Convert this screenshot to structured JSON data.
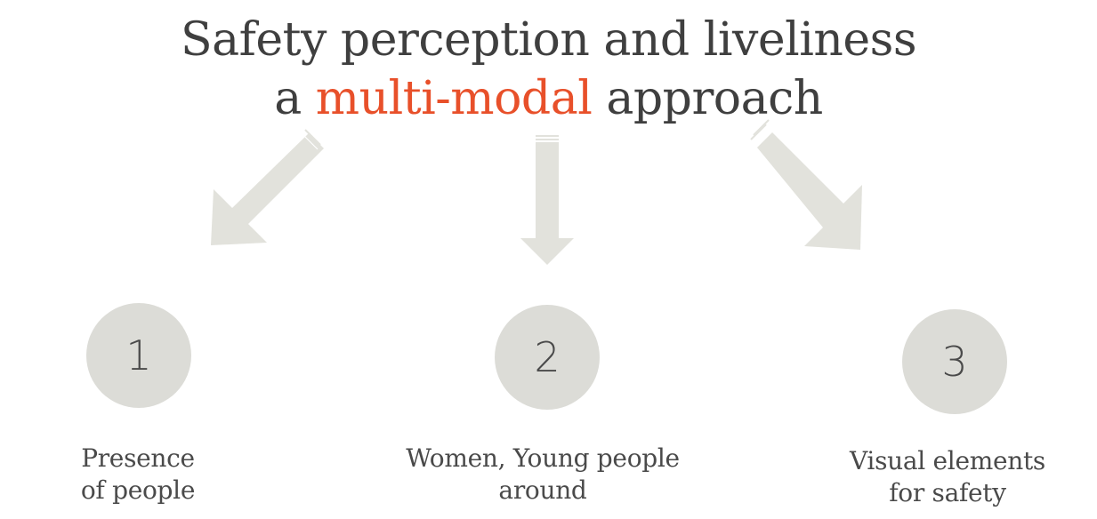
{
  "title": {
    "line1": "Safety perception and liveliness",
    "line2_prefix": "a ",
    "line2_accent": "multi-modal",
    "line2_suffix": " approach",
    "accent_color": "#e8502a"
  },
  "items": [
    {
      "number": "1",
      "caption_line1": "Presence",
      "caption_line2": "of people"
    },
    {
      "number": "2",
      "caption_line1": "Women, Young people",
      "caption_line2": "around"
    },
    {
      "number": "3",
      "caption_line1": "Visual elements",
      "caption_line2": "for safety"
    }
  ],
  "colors": {
    "circle_fill": "#dcdcd7",
    "arrow_fill": "#e2e2dc",
    "text": "#3f3f3f"
  },
  "icons": [
    "arrow-down-left-icon",
    "arrow-down-icon",
    "arrow-down-right-icon"
  ]
}
